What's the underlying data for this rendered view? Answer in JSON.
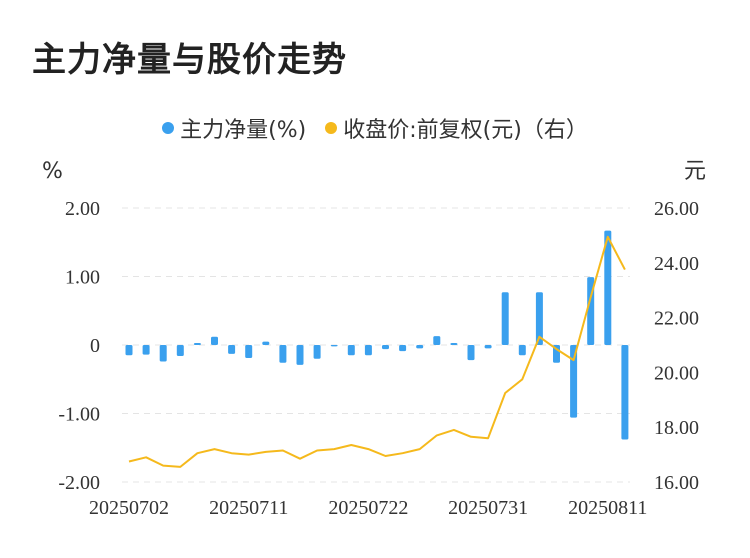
{
  "title": "主力净量与股价走势",
  "legend": {
    "series1_label": "主力净量(%)",
    "series2_label": "收盘价:前复权(元)（右）"
  },
  "colors": {
    "bar": "#3AA0EE",
    "line": "#F5B91C",
    "grid": "#E4E4E4",
    "text": "#333333"
  },
  "chart_data": {
    "type": "bar+line",
    "left_unit": "%",
    "right_unit": "元",
    "y_left": {
      "min": -2,
      "max": 2,
      "ticks": [
        2,
        1,
        0,
        -1,
        -2
      ],
      "tick_labels": [
        "2.00",
        "1.00",
        "0",
        "-1.00",
        "-2.00"
      ]
    },
    "y_right": {
      "min": 16,
      "max": 26,
      "ticks": [
        26,
        24,
        22,
        20,
        18,
        16
      ],
      "tick_labels": [
        "26.00",
        "24.00",
        "22.00",
        "20.00",
        "18.00",
        "16.00"
      ]
    },
    "x_tick_labels": [
      {
        "index": 0,
        "label": "20250702"
      },
      {
        "index": 7,
        "label": "20250711"
      },
      {
        "index": 14,
        "label": "20250722"
      },
      {
        "index": 21,
        "label": "20250731"
      },
      {
        "index": 28,
        "label": "20250811"
      }
    ],
    "series": [
      {
        "name": "主力净量(%)",
        "kind": "bar",
        "axis": "left",
        "values": [
          -0.15,
          -0.14,
          -0.24,
          -0.16,
          0.03,
          0.12,
          -0.13,
          -0.19,
          0.05,
          -0.26,
          -0.29,
          -0.2,
          -0.02,
          -0.15,
          -0.15,
          -0.06,
          -0.09,
          -0.05,
          0.13,
          0.03,
          -0.22,
          -0.05,
          0.77,
          -0.15,
          0.77,
          -0.26,
          -1.06,
          0.99,
          1.67,
          -1.38
        ]
      },
      {
        "name": "收盘价:前复权(元)（右）",
        "kind": "line",
        "axis": "right",
        "values": [
          16.75,
          16.9,
          16.6,
          16.55,
          17.05,
          17.2,
          17.05,
          17.0,
          17.1,
          17.15,
          16.85,
          17.15,
          17.2,
          17.35,
          17.2,
          16.95,
          17.05,
          17.2,
          17.7,
          17.9,
          17.65,
          17.6,
          19.25,
          19.75,
          21.3,
          20.85,
          20.45,
          22.75,
          24.95,
          23.75
        ]
      }
    ]
  }
}
